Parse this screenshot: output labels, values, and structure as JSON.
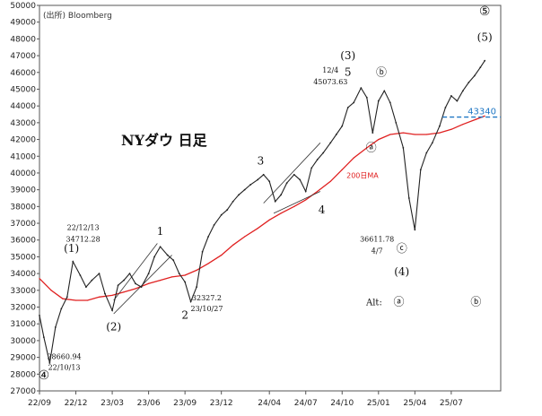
{
  "chart_data": {
    "type": "line",
    "title": "NYダウ 日足",
    "source": "(出所) Bloomberg",
    "ylim": [
      27000,
      50000
    ],
    "xlim": [
      2022.67,
      2025.84
    ],
    "y_ticks": [
      27000,
      28000,
      29000,
      30000,
      31000,
      32000,
      33000,
      34000,
      35000,
      36000,
      37000,
      38000,
      39000,
      40000,
      41000,
      42000,
      43000,
      44000,
      45000,
      46000,
      47000,
      48000,
      49000,
      50000
    ],
    "x_ticks": [
      {
        "label": "22/09",
        "x": 2022.67
      },
      {
        "label": "22/12",
        "x": 2022.92
      },
      {
        "label": "23/03",
        "x": 2023.17
      },
      {
        "label": "23/06",
        "x": 2023.42
      },
      {
        "label": "23/09",
        "x": 2023.67
      },
      {
        "label": "23/12",
        "x": 2023.92
      },
      {
        "label": "24/04",
        "x": 2024.25
      },
      {
        "label": "24/07",
        "x": 2024.5
      },
      {
        "label": "24/10",
        "x": 2024.75
      },
      {
        "label": "25/01",
        "x": 2025.0
      },
      {
        "label": "25/04",
        "x": 2025.25
      },
      {
        "label": "25/07",
        "x": 2025.5
      }
    ],
    "series": [
      {
        "role": "price",
        "color": "#222222",
        "x": [
          2022.67,
          2022.7,
          2022.74,
          2022.78,
          2022.82,
          2022.86,
          2022.9,
          2022.95,
          2022.99,
          2023.03,
          2023.08,
          2023.12,
          2023.17,
          2023.21,
          2023.25,
          2023.29,
          2023.33,
          2023.37,
          2023.42,
          2023.46,
          2023.5,
          2023.55,
          2023.59,
          2023.63,
          2023.67,
          2023.71,
          2023.75,
          2023.79,
          2023.83,
          2023.87,
          2023.92,
          2023.96,
          2024.0,
          2024.04,
          2024.08,
          2024.12,
          2024.17,
          2024.21,
          2024.25,
          2024.29,
          2024.33,
          2024.37,
          2024.42,
          2024.46,
          2024.5,
          2024.54,
          2024.58,
          2024.62,
          2024.67,
          2024.71,
          2024.75,
          2024.79,
          2024.83,
          2024.88,
          2024.92,
          2024.96,
          2025.0,
          2025.04,
          2025.08,
          2025.12,
          2025.17,
          2025.21,
          2025.25,
          2025.29,
          2025.33,
          2025.37,
          2025.42,
          2025.46,
          2025.5,
          2025.54,
          2025.58,
          2025.62,
          2025.66,
          2025.7,
          2025.73
        ],
        "values": [
          31500,
          30200,
          28661,
          30800,
          31900,
          32600,
          34712,
          33900,
          33200,
          33600,
          34000,
          32800,
          31800,
          33300,
          33600,
          34000,
          33400,
          33200,
          34000,
          35000,
          35600,
          35100,
          34800,
          34000,
          33500,
          32327,
          33200,
          35300,
          36200,
          36900,
          37500,
          37800,
          38300,
          38700,
          39000,
          39300,
          39600,
          39900,
          39500,
          38300,
          38700,
          39400,
          39900,
          39600,
          38900,
          40300,
          40800,
          41200,
          41800,
          42300,
          42800,
          43900,
          44200,
          45074,
          44500,
          42400,
          44300,
          44900,
          44200,
          43000,
          41500,
          38500,
          36612,
          40200,
          41200,
          41800,
          42800,
          43900,
          44600,
          44300,
          44900,
          45400,
          45800,
          46300,
          46700
        ]
      },
      {
        "role": "ma",
        "name": "200日MA",
        "color": "#e02020",
        "x": [
          2022.67,
          2022.75,
          2022.83,
          2022.92,
          2023.0,
          2023.08,
          2023.17,
          2023.25,
          2023.33,
          2023.42,
          2023.5,
          2023.58,
          2023.67,
          2023.75,
          2023.83,
          2023.92,
          2024.0,
          2024.08,
          2024.17,
          2024.25,
          2024.33,
          2024.42,
          2024.5,
          2024.58,
          2024.67,
          2024.75,
          2024.83,
          2024.92,
          2025.0,
          2025.08,
          2025.17,
          2025.25,
          2025.33,
          2025.42,
          2025.5,
          2025.58,
          2025.67,
          2025.73
        ],
        "values": [
          33700,
          33000,
          32500,
          32400,
          32400,
          32600,
          32700,
          32900,
          33100,
          33400,
          33600,
          33800,
          33900,
          34200,
          34600,
          35100,
          35700,
          36200,
          36700,
          37200,
          37600,
          38000,
          38400,
          38900,
          39500,
          40200,
          40900,
          41500,
          42000,
          42300,
          42400,
          42300,
          42300,
          42400,
          42600,
          42900,
          43200,
          43400
        ]
      }
    ],
    "reference_line": {
      "value": 43340,
      "label": "43340",
      "color": "#1f77c4",
      "x_from": 2025.44,
      "x_to": 2025.84
    },
    "channels": [
      {
        "label": "channel-2-1",
        "lines": [
          [
            [
              2023.18,
              32400
            ],
            [
              2023.48,
              35800
            ]
          ],
          [
            [
              2023.18,
              31600
            ],
            [
              2023.58,
              35100
            ]
          ]
        ]
      },
      {
        "label": "channel-3-4",
        "lines": [
          [
            [
              2024.21,
              38200
            ],
            [
              2024.6,
              41800
            ]
          ],
          [
            [
              2024.28,
              37600
            ],
            [
              2024.6,
              38900
            ]
          ]
        ]
      }
    ],
    "annotations": [
      {
        "text": "④",
        "x": 2022.7,
        "y": 27700,
        "size": 14
      },
      {
        "text": "28660.94",
        "x": 2022.84,
        "y": 28900,
        "size": 8
      },
      {
        "text": "22/10/13",
        "x": 2022.84,
        "y": 28250,
        "size": 8
      },
      {
        "text": "(1)",
        "x": 2022.89,
        "y": 35300,
        "size": 12
      },
      {
        "text": "22/12/13",
        "x": 2022.97,
        "y": 36600,
        "size": 8
      },
      {
        "text": "34712.28",
        "x": 2022.97,
        "y": 35900,
        "size": 8
      },
      {
        "text": "(2)",
        "x": 2023.18,
        "y": 30600,
        "size": 12
      },
      {
        "text": "1",
        "x": 2023.5,
        "y": 36300,
        "size": 12
      },
      {
        "text": "2",
        "x": 2023.67,
        "y": 31300,
        "size": 12
      },
      {
        "text": "32327.2",
        "x": 2023.82,
        "y": 32400,
        "size": 8
      },
      {
        "text": "23/10/27",
        "x": 2023.82,
        "y": 31750,
        "size": 8
      },
      {
        "text": "3",
        "x": 2024.19,
        "y": 40500,
        "size": 12
      },
      {
        "text": "4",
        "x": 2024.61,
        "y": 37600,
        "size": 12
      },
      {
        "text": "(3)",
        "x": 2024.79,
        "y": 46800,
        "size": 12
      },
      {
        "text": "5",
        "x": 2024.79,
        "y": 45800,
        "size": 12
      },
      {
        "text": "12/4",
        "x": 2024.67,
        "y": 46000,
        "size": 8
      },
      {
        "text": "45073.63",
        "x": 2024.67,
        "y": 45300,
        "size": 8
      },
      {
        "text": "ⓑ",
        "x": 2025.02,
        "y": 45800,
        "size": 12
      },
      {
        "text": "ⓐ",
        "x": 2024.95,
        "y": 41300,
        "size": 12
      },
      {
        "text": "36611.78",
        "x": 2024.99,
        "y": 35900,
        "size": 8
      },
      {
        "text": "4/7",
        "x": 2024.99,
        "y": 35200,
        "size": 8
      },
      {
        "text": "ⓒ",
        "x": 2025.16,
        "y": 35300,
        "size": 12
      },
      {
        "text": "(4)",
        "x": 2025.16,
        "y": 33900,
        "size": 12
      },
      {
        "text": "⑤",
        "x": 2025.73,
        "y": 49400,
        "size": 14
      },
      {
        "text": "(5)",
        "x": 2025.73,
        "y": 47900,
        "size": 12
      },
      {
        "text": "Alt:",
        "x": 2024.97,
        "y": 32100,
        "size": 10
      },
      {
        "text": "ⓐ",
        "x": 2025.14,
        "y": 32100,
        "size": 12
      },
      {
        "text": "ⓑ",
        "x": 2025.67,
        "y": 32100,
        "size": 12
      }
    ],
    "ma_label": {
      "text": "200日MA",
      "x": 2024.78,
      "y": 39700
    },
    "grid": false
  }
}
